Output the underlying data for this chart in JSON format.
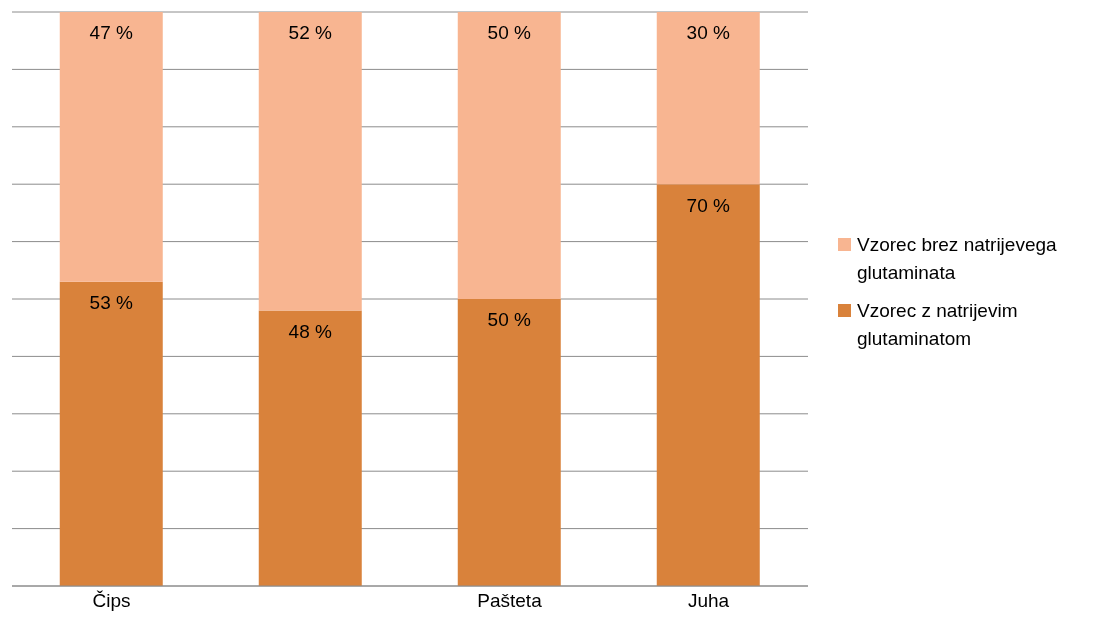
{
  "chart_data": {
    "type": "bar",
    "stacked": true,
    "categories": [
      "Čips",
      null,
      "Pašteta",
      "Juha"
    ],
    "series": [
      {
        "name": "Vzorec z natrijevim glutaminatom",
        "color": "#d9823b",
        "values": [
          53,
          48,
          50,
          70
        ],
        "value_labels": [
          "53 %",
          "48 %",
          "50 %",
          "70 %"
        ]
      },
      {
        "name": "Vzorec brez natrijevega glutaminata",
        "color": "#f8b591",
        "values": [
          47,
          52,
          50,
          30
        ],
        "value_labels": [
          "47 %",
          "52 %",
          "50 %",
          "30 %"
        ]
      }
    ],
    "ylim": [
      0,
      100
    ],
    "yticks": [
      {
        "value": 0,
        "label": null
      },
      {
        "value": 10,
        "label": null
      },
      {
        "value": 20,
        "label": null
      },
      {
        "value": 30,
        "label": null
      },
      {
        "value": 40,
        "label": null
      },
      {
        "value": 50,
        "label": null
      },
      {
        "value": 60,
        "label": null
      },
      {
        "value": 70,
        "label": null
      },
      {
        "value": 80,
        "label": null
      },
      {
        "value": 90,
        "label": null
      },
      {
        "value": 100,
        "label": null
      }
    ],
    "grid": "y",
    "legend": "right",
    "tick_labels": "x"
  }
}
